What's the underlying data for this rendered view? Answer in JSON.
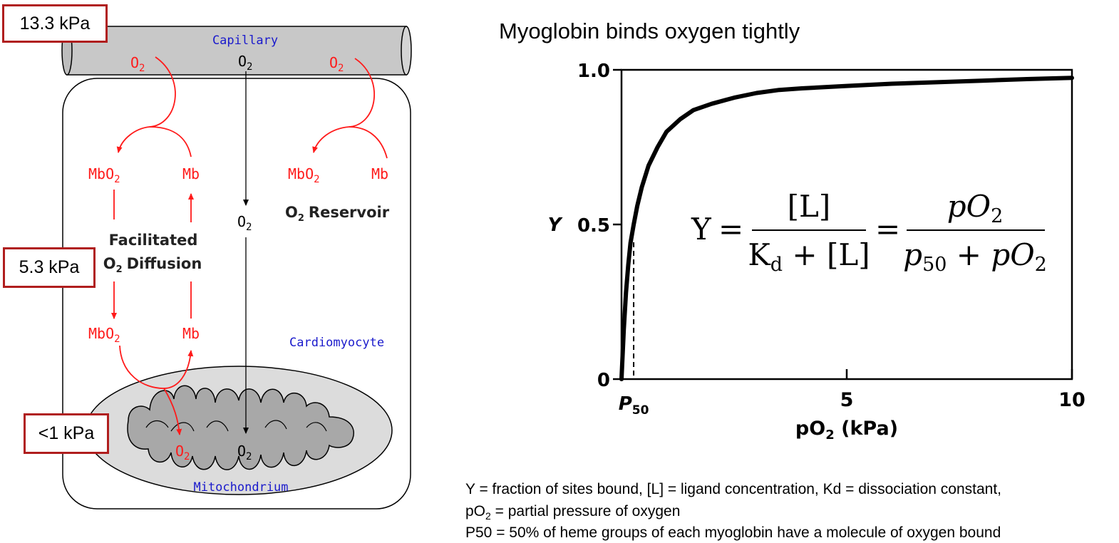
{
  "diagram": {
    "capillary_label": "Capillary",
    "o2": "O2",
    "o2_base": "O",
    "o2_sub": "2",
    "mbo2_base": "MbO",
    "mb": "Mb",
    "facilitated_line1": "Facilitated",
    "facilitated_line2": "Diffusion",
    "reservoir": "Reservoir",
    "cardiomyocyte_label": "Cardiomyocyte",
    "mitochondrion_label": "Mitochondrium",
    "pressure_capillary": "13.3 kPa",
    "pressure_cell": "5.3 kPa",
    "pressure_mito": "<1 kPa",
    "colors": {
      "red": "#ff1a1a",
      "blue": "#1a1acc",
      "box_border": "#b01e1e",
      "gray": "#c8c8c8"
    }
  },
  "chart_title": "Myoglobin binds oxygen tightly",
  "chart_data": {
    "type": "line",
    "title": "Myoglobin binds oxygen tightly",
    "xlabel_base": "pO",
    "xlabel_sub": "2",
    "xlabel_unit": " (kPa)",
    "ylabel": "Y",
    "xlim": [
      0,
      10
    ],
    "ylim": [
      0,
      1.0
    ],
    "x_ticks": [
      {
        "value": 5,
        "label": "5"
      },
      {
        "value": 10,
        "label": "10"
      }
    ],
    "y_ticks": [
      {
        "value": 0,
        "label": "0"
      },
      {
        "value": 0.5,
        "label": "0.5"
      },
      {
        "value": 1.0,
        "label": "1.0"
      }
    ],
    "p50_label_base": "P",
    "p50_label_sub": "50",
    "p50_value": 0.27,
    "series": [
      {
        "x": [
          0.0,
          0.05,
          0.1,
          0.15,
          0.2,
          0.27,
          0.35,
          0.45,
          0.6,
          0.8,
          1.0,
          1.3,
          1.6,
          2.0,
          2.5,
          3.0,
          3.5,
          4.0,
          5.0,
          6.0,
          7.0,
          8.0,
          9.0,
          10.0
        ],
        "y": [
          0.0,
          0.16,
          0.28,
          0.37,
          0.44,
          0.5,
          0.56,
          0.62,
          0.69,
          0.75,
          0.8,
          0.84,
          0.87,
          0.89,
          0.91,
          0.925,
          0.935,
          0.94,
          0.948,
          0.955,
          0.96,
          0.965,
          0.97,
          0.974
        ]
      }
    ]
  },
  "equation": {
    "lhs": "Y",
    "eq": "=",
    "num1": "[L]",
    "den1_a": "K",
    "den1_sub": "d",
    "den1_b": " + [L]",
    "num2_a": "pO",
    "num2_sub": "2",
    "den2_p": "p",
    "den2_sub": "50",
    "den2_b": " + pO",
    "den2_sub2": "2"
  },
  "caption": {
    "line1": "Y = fraction of sites bound, [L] = ligand concentration, Kd = dissociation constant,",
    "line2_base": "pO",
    "line2_sub": "2",
    "line2_rest": " = partial pressure of oxygen",
    "line3": "P50 = 50% of heme groups of each myoglobin have a molecule of oxygen bound"
  }
}
